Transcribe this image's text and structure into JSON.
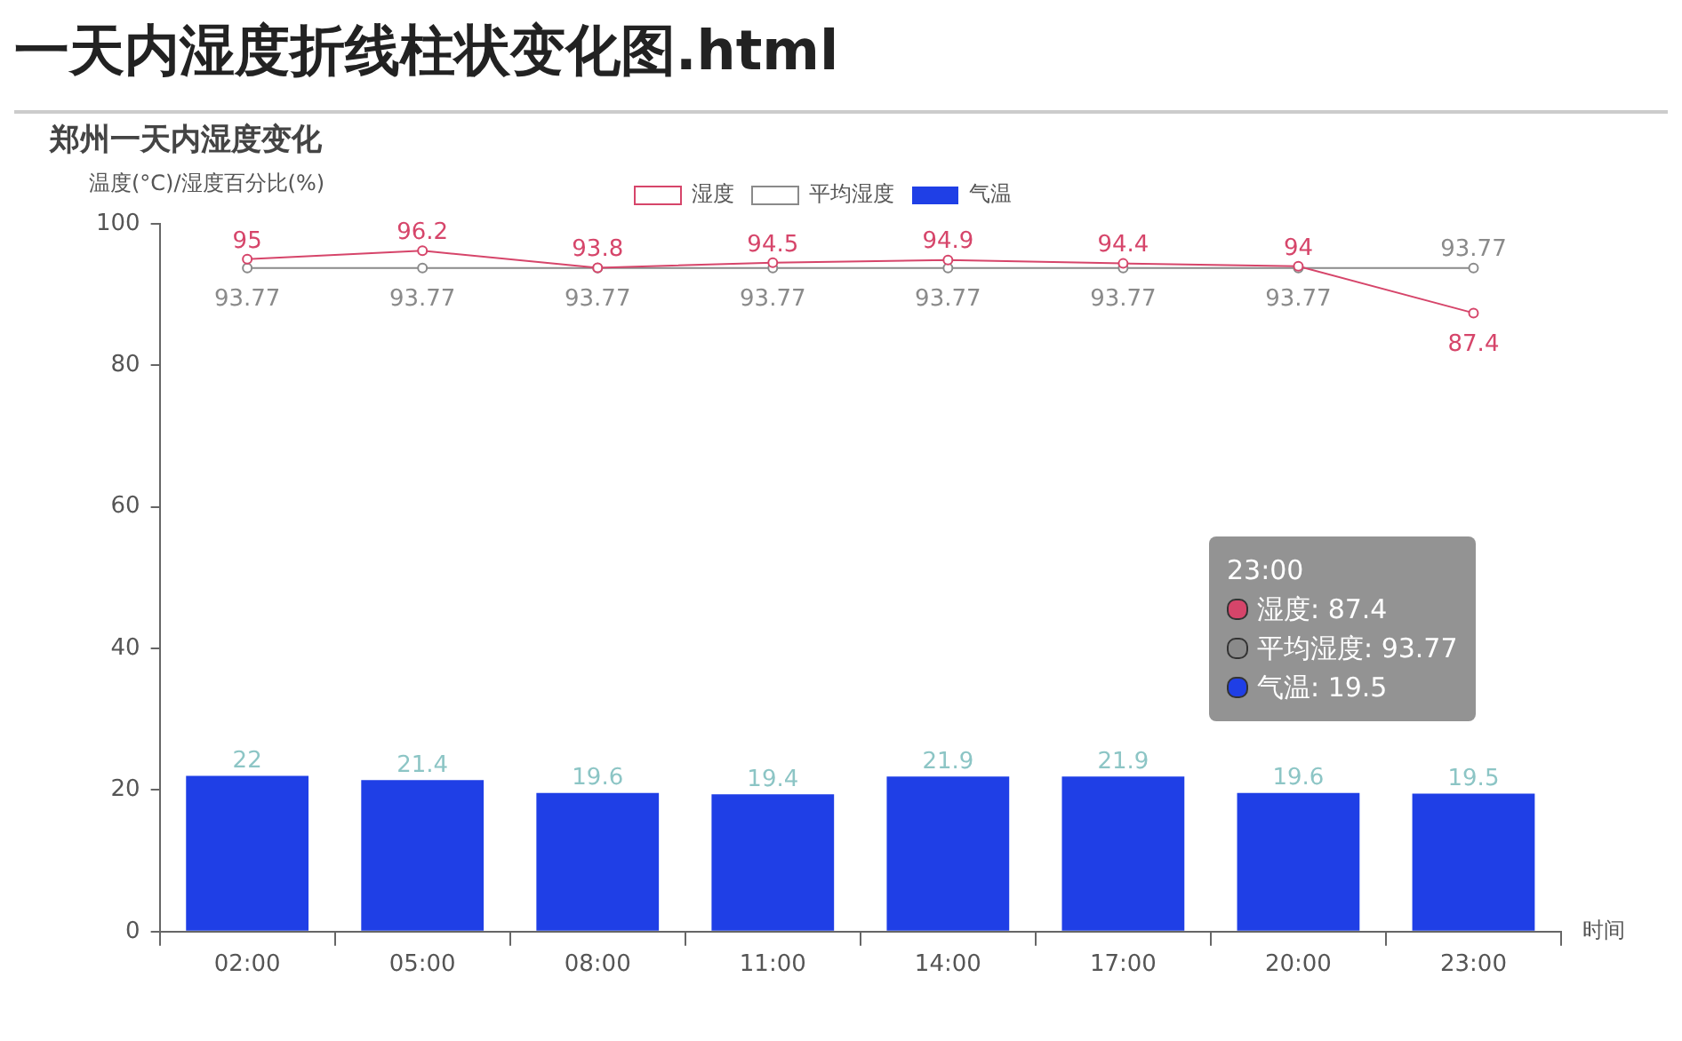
{
  "chart_data": {
    "type": "bar",
    "title": "一天内湿度折线柱状变化图.html",
    "subtitle": "郑州一天内湿度变化",
    "xlabel": "时间",
    "ylabel": "温度(°C)/湿度百分比(%)",
    "categories": [
      "02:00",
      "05:00",
      "08:00",
      "11:00",
      "14:00",
      "17:00",
      "20:00",
      "23:00"
    ],
    "series": [
      {
        "name": "湿度",
        "type": "line",
        "color": "#d6456a",
        "values": [
          95,
          96.2,
          93.8,
          94.5,
          94.9,
          94.4,
          94,
          87.4
        ]
      },
      {
        "name": "平均湿度",
        "type": "line",
        "color": "#8a8a8a",
        "values": [
          93.77,
          93.77,
          93.77,
          93.77,
          93.77,
          93.77,
          93.77,
          93.77
        ]
      },
      {
        "name": "气温",
        "color": "#1f3fe6",
        "values": [
          22,
          21.4,
          19.6,
          19.4,
          21.9,
          21.9,
          19.6,
          19.5
        ]
      }
    ],
    "ylim": [
      0,
      100
    ],
    "yticks": [
      0,
      20,
      40,
      60,
      80,
      100
    ],
    "grid": false,
    "legend": "top",
    "marker": "circle",
    "data_labels": true,
    "annotations": [
      "23:00",
      "湿度: 87.4",
      "平均湿度: 93.77",
      "气温: 19.5"
    ]
  }
}
